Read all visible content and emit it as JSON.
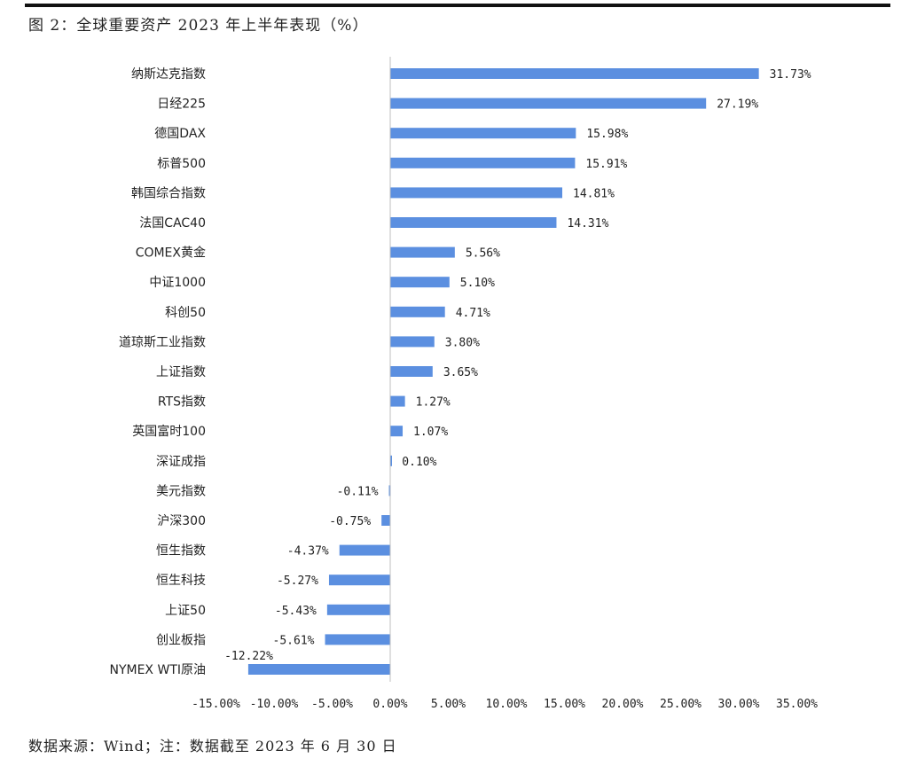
{
  "figure": {
    "title": "图 2：全球重要资产 2023 年上半年表现（%）",
    "source": "数据来源：Wind；注：数据截至 2023 年 6 月 30 日"
  },
  "colors": {
    "bar": "#5B8FE0",
    "axis": "#bfbfbf"
  },
  "chart_data": {
    "type": "bar",
    "orientation": "horizontal",
    "categories": [
      "纳斯达克指数",
      "日经225",
      "德国DAX",
      "标普500",
      "韩国综合指数",
      "法国CAC40",
      "COMEX黄金",
      "中证1000",
      "科创50",
      "道琼斯工业指数",
      "上证指数",
      "RTS指数",
      "英国富时100",
      "深证成指",
      "美元指数",
      "沪深300",
      "恒生指数",
      "恒生科技",
      "上证50",
      "创业板指",
      "NYMEX WTI原油"
    ],
    "values": [
      31.73,
      27.19,
      15.98,
      15.91,
      14.81,
      14.31,
      5.56,
      5.1,
      4.71,
      3.8,
      3.65,
      1.27,
      1.07,
      0.1,
      -0.11,
      -0.75,
      -4.37,
      -5.27,
      -5.43,
      -5.61,
      -12.22
    ],
    "value_labels": [
      "31.73%",
      "27.19%",
      "15.98%",
      "15.91%",
      "14.81%",
      "14.31%",
      "5.56%",
      "5.10%",
      "4.71%",
      "3.80%",
      "3.65%",
      "1.27%",
      "1.07%",
      "0.10%",
      "-0.11%",
      "-0.75%",
      "-4.37%",
      "-5.27%",
      "-5.43%",
      "-5.61%",
      "-12.22%"
    ],
    "xlim": [
      -15,
      35
    ],
    "x_ticks": [
      -15,
      -10,
      -5,
      0,
      5,
      10,
      15,
      20,
      25,
      30,
      35
    ],
    "x_tick_labels": [
      "-15.00%",
      "-10.00%",
      "-5.00%",
      "0.00%",
      "5.00%",
      "10.00%",
      "15.00%",
      "20.00%",
      "25.00%",
      "30.00%",
      "35.00%"
    ],
    "grid": false,
    "legend": "none"
  }
}
